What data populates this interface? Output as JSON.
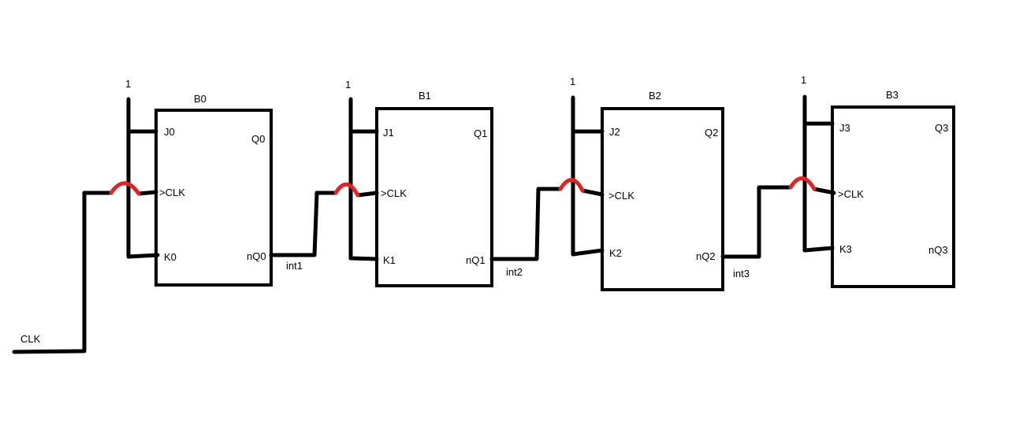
{
  "colors": {
    "wire": "#000000",
    "crossover": "#e02424",
    "background": "#ffffff"
  },
  "clock_input": {
    "label": "CLK"
  },
  "flipflops": [
    {
      "name": "B0",
      "const": "1",
      "j": "J0",
      "clk": ">CLK",
      "k": "K0",
      "q": "Q0",
      "nq": "nQ0"
    },
    {
      "name": "B1",
      "const": "1",
      "j": "J1",
      "clk": ">CLK",
      "k": "K1",
      "q": "Q1",
      "nq": "nQ1"
    },
    {
      "name": "B2",
      "const": "1",
      "j": "J2",
      "clk": ">CLK",
      "k": "K2",
      "q": "Q2",
      "nq": "nQ2"
    },
    {
      "name": "B3",
      "const": "1",
      "j": "J3",
      "clk": ">CLK",
      "k": "K3",
      "q": "Q3",
      "nq": "nQ3"
    }
  ],
  "nets": [
    {
      "label": "int1"
    },
    {
      "label": "int2"
    },
    {
      "label": "int3"
    }
  ]
}
